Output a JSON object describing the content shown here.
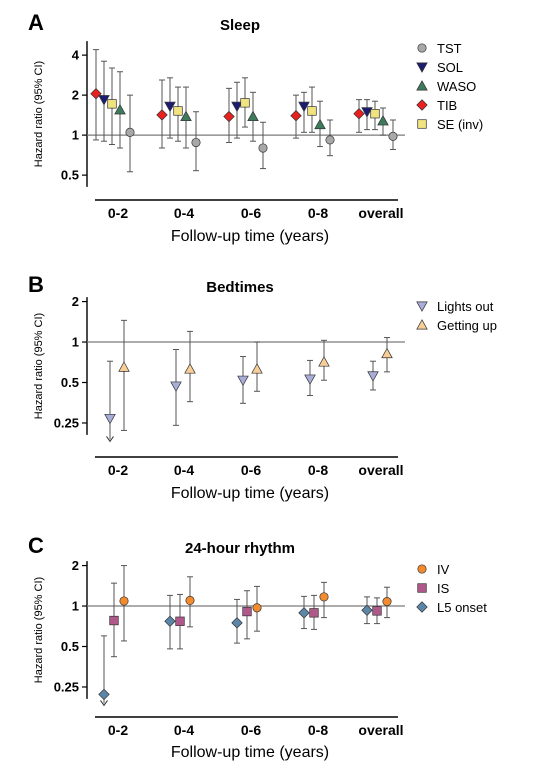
{
  "chart_data": [
    {
      "type": "scatter",
      "panel": "A",
      "title": "Sleep",
      "ylabel": "Hazard ratio (95% CI)",
      "xlabel": "Follow-up time (years)",
      "y_scale": "log",
      "yticks": [
        "0.5",
        "1",
        "2",
        "4"
      ],
      "ytick_values": [
        0.5,
        1,
        2,
        4
      ],
      "ylim": [
        0.4,
        5.2
      ],
      "reference_line": 1,
      "categories": [
        "0-2",
        "0-4",
        "0-6",
        "0-8",
        "overall"
      ],
      "legend_position": "right",
      "series": [
        {
          "name": "TIB",
          "marker": "diamond",
          "color": "#e8211e",
          "values": [
            2.05,
            1.42,
            1.38,
            1.4,
            1.45
          ],
          "ci_low": [
            0.92,
            0.8,
            0.88,
            0.95,
            1.05
          ],
          "ci_high": [
            4.4,
            2.6,
            2.25,
            2.0,
            1.85
          ]
        },
        {
          "name": "SOL",
          "marker": "triangle-down",
          "color": "#1c1c70",
          "values": [
            1.85,
            1.65,
            1.65,
            1.65,
            1.5
          ],
          "ci_low": [
            0.9,
            0.95,
            0.95,
            1.05,
            1.1
          ],
          "ci_high": [
            3.6,
            2.7,
            2.5,
            2.1,
            1.85
          ]
        },
        {
          "name": "SE (inv)",
          "marker": "square",
          "color": "#f1e37e",
          "values": [
            1.72,
            1.52,
            1.75,
            1.52,
            1.45
          ],
          "ci_low": [
            0.85,
            0.9,
            1.15,
            1.05,
            1.1
          ],
          "ci_high": [
            3.2,
            2.3,
            2.7,
            2.3,
            1.8
          ]
        },
        {
          "name": "WASO",
          "marker": "triangle-up",
          "color": "#3e7a5c",
          "values": [
            1.55,
            1.38,
            1.38,
            1.2,
            1.28
          ],
          "ci_low": [
            0.8,
            0.8,
            0.9,
            0.82,
            1.0
          ],
          "ci_high": [
            3.0,
            2.3,
            2.1,
            1.8,
            1.6
          ]
        },
        {
          "name": "TST",
          "marker": "circle",
          "color": "#a8a8a8",
          "values": [
            1.05,
            0.88,
            0.8,
            0.92,
            0.98
          ],
          "ci_low": [
            0.53,
            0.54,
            0.56,
            0.7,
            0.78
          ],
          "ci_high": [
            2.0,
            1.5,
            1.25,
            1.3,
            1.3
          ]
        }
      ],
      "legend_order": [
        "TST",
        "SOL",
        "WASO",
        "TIB",
        "SE (inv)"
      ]
    },
    {
      "type": "scatter",
      "panel": "B",
      "title": "Bedtimes",
      "ylabel": "Hazard ratio (95% CI)",
      "xlabel": "Follow-up time (years)",
      "y_scale": "log",
      "yticks": [
        "0.25",
        "0.5",
        "1",
        "2"
      ],
      "ytick_values": [
        0.25,
        0.5,
        1,
        2
      ],
      "ylim": [
        0.2,
        2.2
      ],
      "reference_line": 1,
      "categories": [
        "0-2",
        "0-4",
        "0-6",
        "0-8",
        "overall"
      ],
      "legend_position": "right",
      "series": [
        {
          "name": "Lights out",
          "marker": "triangle-down",
          "color": "#a9aed9",
          "values": [
            0.27,
            0.47,
            0.52,
            0.53,
            0.56
          ],
          "ci_low": [
            0.07,
            0.24,
            0.35,
            0.4,
            0.44
          ],
          "ci_high": [
            0.72,
            0.88,
            0.78,
            0.73,
            0.72
          ],
          "ci_low_arrow": [
            true,
            false,
            false,
            false,
            false
          ]
        },
        {
          "name": "Getting up",
          "marker": "triangle-up",
          "color": "#f8ce98",
          "values": [
            0.65,
            0.63,
            0.63,
            0.71,
            0.82
          ],
          "ci_low": [
            0.22,
            0.36,
            0.43,
            0.52,
            0.6
          ],
          "ci_high": [
            1.45,
            1.2,
            1.0,
            1.03,
            1.08
          ]
        }
      ],
      "legend_order": [
        "Lights out",
        "Getting up"
      ]
    },
    {
      "type": "scatter",
      "panel": "C",
      "title": "24-hour rhythm",
      "ylabel": "Hazard ratio (95% CI)",
      "xlabel": "Follow-up time (years)",
      "y_scale": "log",
      "yticks": [
        "0.25",
        "0.5",
        "1",
        "2"
      ],
      "ytick_values": [
        0.25,
        0.5,
        1,
        2
      ],
      "ylim": [
        0.2,
        2.2
      ],
      "reference_line": 1,
      "categories": [
        "0-2",
        "0-4",
        "0-6",
        "0-8",
        "overall"
      ],
      "legend_position": "right",
      "series": [
        {
          "name": "L5 onset",
          "marker": "diamond",
          "color": "#5c86a8",
          "values": [
            0.22,
            0.77,
            0.75,
            0.89,
            0.93
          ],
          "ci_low": [
            0.07,
            0.48,
            0.53,
            0.68,
            0.74
          ],
          "ci_high": [
            0.6,
            1.2,
            1.12,
            1.18,
            1.17
          ],
          "ci_low_arrow": [
            true,
            false,
            false,
            false,
            false
          ]
        },
        {
          "name": "IS",
          "marker": "square",
          "color": "#b0588a",
          "values": [
            0.78,
            0.77,
            0.91,
            0.89,
            0.92
          ],
          "ci_low": [
            0.42,
            0.48,
            0.57,
            0.67,
            0.74
          ],
          "ci_high": [
            1.48,
            1.22,
            1.3,
            1.2,
            1.15
          ]
        },
        {
          "name": "IV",
          "marker": "circle",
          "color": "#f28a2e",
          "values": [
            1.09,
            1.1,
            0.97,
            1.17,
            1.08
          ],
          "ci_low": [
            0.55,
            0.7,
            0.65,
            0.82,
            0.82
          ],
          "ci_high": [
            2.0,
            1.65,
            1.4,
            1.5,
            1.38
          ]
        }
      ],
      "legend_order": [
        "IV",
        "IS",
        "L5 onset"
      ]
    }
  ]
}
